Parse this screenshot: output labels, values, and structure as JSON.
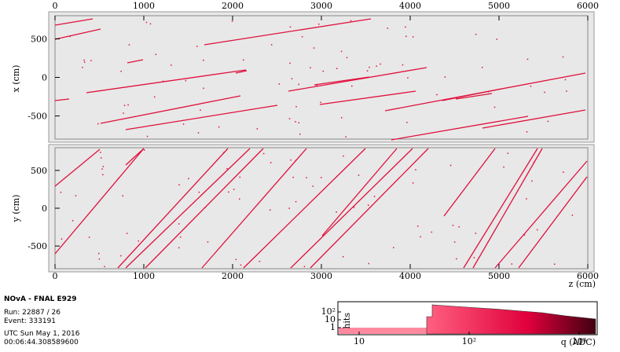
{
  "views": [
    {
      "axis_label": "x (cm)",
      "ylim": [
        -800,
        800
      ],
      "yticks": [
        -500,
        0,
        500
      ]
    },
    {
      "axis_label": "y (cm)",
      "ylim": [
        -800,
        800
      ],
      "yticks": [
        -500,
        0,
        500
      ]
    }
  ],
  "zlim": [
    0,
    6000
  ],
  "zticks": [
    0,
    1000,
    2000,
    3000,
    4000,
    5000,
    6000
  ],
  "z_axis_label": "z (cm)",
  "info": {
    "title": "NOvA - FNAL E929",
    "run": "Run:   22887 / 26",
    "event": "Event: 333191",
    "date": "UTC Sun May 1, 2016",
    "time": "00:06:44.308589600"
  },
  "histogram": {
    "ylabel": "hits",
    "xlabel": "q (ADC)",
    "xticks": [
      {
        "value": 10,
        "label": "10"
      },
      {
        "value": 100,
        "label": "10²"
      },
      {
        "value": 1000,
        "label": "10³"
      }
    ],
    "yticks": [
      {
        "value": 100,
        "label": "10²"
      },
      {
        "value": 10,
        "label": "10"
      },
      {
        "value": 1,
        "label": "1"
      }
    ]
  }
}
